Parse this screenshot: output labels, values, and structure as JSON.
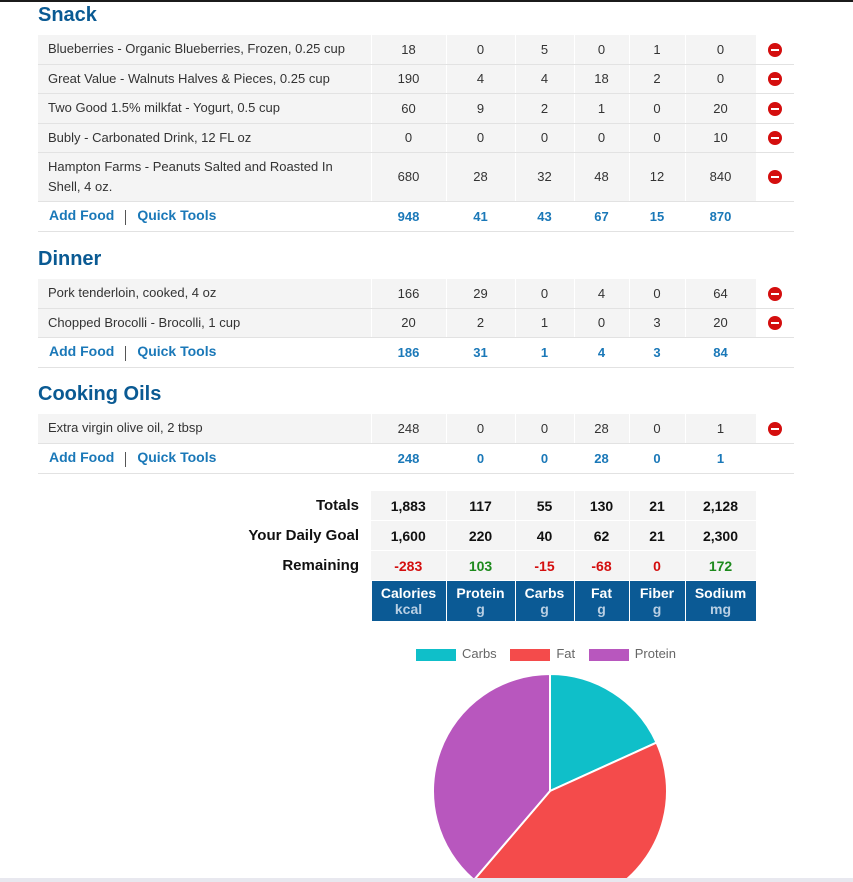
{
  "snack": {
    "title": "Snack",
    "rows": [
      {
        "name": "Blueberries - Organic Blueberries, Frozen, 0.25 cup",
        "vals": [
          "18",
          "0",
          "5",
          "0",
          "1",
          "0"
        ]
      },
      {
        "name": "Great Value - Walnuts Halves & Pieces, 0.25 cup",
        "vals": [
          "190",
          "4",
          "4",
          "18",
          "2",
          "0"
        ]
      },
      {
        "name": "Two Good 1.5% milkfat - Yogurt, 0.5 cup",
        "vals": [
          "60",
          "9",
          "2",
          "1",
          "0",
          "20"
        ]
      },
      {
        "name": "Bubly - Carbonated Drink, 12 FL oz",
        "vals": [
          "0",
          "0",
          "0",
          "0",
          "0",
          "10"
        ]
      },
      {
        "name": "Hampton Farms - Peanuts Salted and Roasted In Shell, 4 oz.",
        "vals": [
          "680",
          "28",
          "32",
          "48",
          "12",
          "840"
        ]
      }
    ],
    "totals": [
      "948",
      "41",
      "43",
      "67",
      "15",
      "870"
    ]
  },
  "dinner": {
    "title": "Dinner",
    "rows": [
      {
        "name": "Pork tenderloin, cooked, 4 oz",
        "vals": [
          "166",
          "29",
          "0",
          "4",
          "0",
          "64"
        ]
      },
      {
        "name": "Chopped Brocolli - Brocolli, 1 cup",
        "vals": [
          "20",
          "2",
          "1",
          "0",
          "3",
          "20"
        ]
      }
    ],
    "totals": [
      "186",
      "31",
      "1",
      "4",
      "3",
      "84"
    ]
  },
  "oils": {
    "title": "Cooking Oils",
    "rows": [
      {
        "name": "Extra virgin olive oil, 2 tbsp",
        "vals": [
          "248",
          "0",
          "0",
          "28",
          "0",
          "1"
        ]
      }
    ],
    "totals": [
      "248",
      "0",
      "0",
      "28",
      "0",
      "1"
    ]
  },
  "actions": {
    "add_food": "Add Food",
    "quick_tools": "Quick Tools"
  },
  "summary": {
    "totals_label": "Totals",
    "goal_label": "Your Daily Goal",
    "remaining_label": "Remaining",
    "totals": [
      "1,883",
      "117",
      "55",
      "130",
      "21",
      "2,128"
    ],
    "goal": [
      "1,600",
      "220",
      "40",
      "62",
      "21",
      "2,300"
    ],
    "remaining": [
      "-283",
      "103",
      "-15",
      "-68",
      "0",
      "172"
    ],
    "columns": [
      {
        "name": "Calories",
        "unit": "kcal"
      },
      {
        "name": "Protein",
        "unit": "g"
      },
      {
        "name": "Carbs",
        "unit": "g"
      },
      {
        "name": "Fat",
        "unit": "g"
      },
      {
        "name": "Fiber",
        "unit": "g"
      },
      {
        "name": "Sodium",
        "unit": "mg"
      }
    ]
  },
  "colors": {
    "carbs": "#0fbfc9",
    "fat": "#f44b4b",
    "protein": "#b857be"
  },
  "chart_data": {
    "type": "pie",
    "legend_position": "top",
    "labels": [
      "Carbs",
      "Fat",
      "Protein"
    ],
    "values": [
      55,
      130,
      117
    ]
  }
}
